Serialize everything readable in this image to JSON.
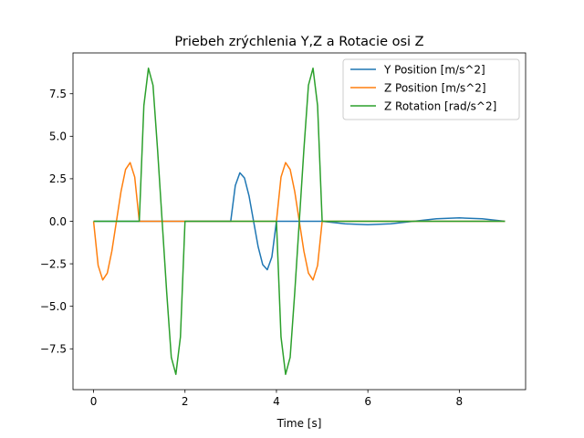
{
  "chart_data": {
    "type": "line",
    "title": "Priebeh zrýchlenia Y,Z a Rotacie osi Z",
    "xlabel": "Time [s]",
    "ylabel": "",
    "xlim": [
      -0.45,
      9.45
    ],
    "ylim": [
      -9.9,
      9.9
    ],
    "xticks": [
      0,
      2,
      4,
      6,
      8
    ],
    "xtick_labels": [
      "0",
      "2",
      "4",
      "6",
      "8"
    ],
    "yticks": [
      -7.5,
      -5.0,
      -2.5,
      0.0,
      2.5,
      5.0,
      7.5
    ],
    "ytick_labels": [
      "−7.5",
      "−5.0",
      "−2.5",
      "0.0",
      "2.5",
      "5.0",
      "7.5"
    ],
    "grid": false,
    "legend_position": "top-right",
    "series": [
      {
        "name": "Y Position [m/s^2]",
        "color": "#1f77b4",
        "x": [
          0,
          1,
          2,
          3.0,
          3.1,
          3.2,
          3.3,
          3.4,
          3.5,
          3.6,
          3.7,
          3.8,
          3.9,
          4.0,
          5.0,
          5.5,
          6.0,
          6.5,
          7.0,
          7.5,
          8.0,
          8.5,
          9.0
        ],
        "y": [
          0,
          0,
          0,
          0.0,
          2.1,
          2.85,
          2.55,
          1.5,
          0.0,
          -1.5,
          -2.55,
          -2.85,
          -2.1,
          0.0,
          0.0,
          -0.15,
          -0.2,
          -0.15,
          0.0,
          0.15,
          0.2,
          0.15,
          0.0
        ]
      },
      {
        "name": "Z Position [m/s^2]",
        "color": "#ff7f0e",
        "x": [
          0.0,
          0.1,
          0.2,
          0.3,
          0.4,
          0.5,
          0.6,
          0.7,
          0.8,
          0.9,
          1.0,
          1.5,
          2.0,
          3.0,
          4.0,
          4.1,
          4.2,
          4.3,
          4.4,
          4.5,
          4.6,
          4.7,
          4.8,
          4.9,
          5.0,
          6.0,
          7.0,
          8.0,
          9.0
        ],
        "y": [
          0.0,
          -2.6,
          -3.45,
          -3.05,
          -1.75,
          0.0,
          1.75,
          3.05,
          3.45,
          2.6,
          0.0,
          0.0,
          0.0,
          0.0,
          0.0,
          2.6,
          3.45,
          3.05,
          1.75,
          0.0,
          -1.75,
          -3.05,
          -3.45,
          -2.6,
          0.0,
          0.0,
          0.0,
          0.0,
          0.0
        ]
      },
      {
        "name": "Z Rotation [rad/s^2]",
        "color": "#2ca02c",
        "x": [
          0.0,
          1.0,
          1.1,
          1.2,
          1.3,
          1.4,
          1.5,
          1.6,
          1.7,
          1.8,
          1.9,
          2.0,
          3.0,
          4.0,
          4.1,
          4.2,
          4.3,
          4.4,
          4.5,
          4.6,
          4.7,
          4.8,
          4.9,
          5.0,
          6.0,
          7.0,
          8.0,
          9.0
        ],
        "y": [
          0.0,
          0.0,
          6.8,
          9.0,
          8.0,
          4.2,
          0.0,
          -4.2,
          -8.0,
          -9.0,
          -6.8,
          0.0,
          0.0,
          0.0,
          -6.8,
          -9.0,
          -8.0,
          -4.2,
          0.0,
          4.2,
          8.0,
          9.0,
          6.8,
          0.0,
          0.0,
          0.0,
          0.0,
          0.0
        ]
      }
    ]
  }
}
